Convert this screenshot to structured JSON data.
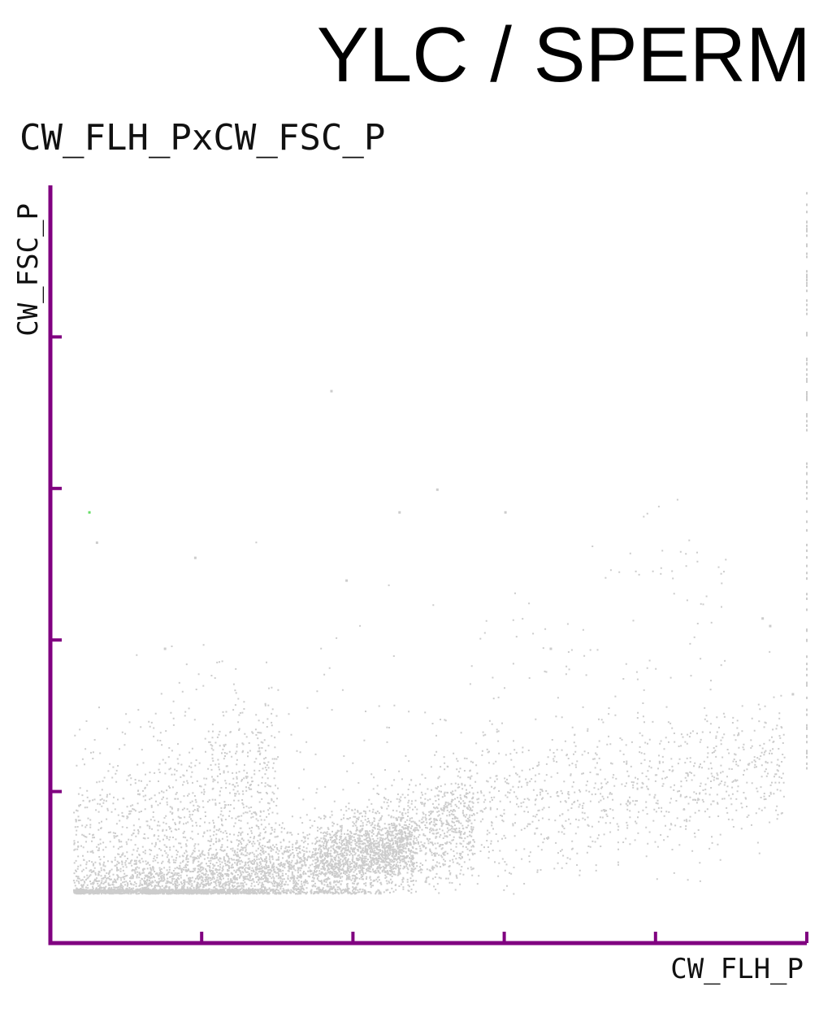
{
  "header": {
    "title": "YLC / SPERM"
  },
  "plot": {
    "title": "CW_FLH_PxCW_FSC_P"
  },
  "chart_data": {
    "type": "scatter",
    "title": "CW_FLH_PxCW_FSC_P",
    "xlabel": "CW_FLH_P",
    "ylabel": "CW_FSC_P",
    "xlim": [
      0,
      1
    ],
    "ylim": [
      0,
      1
    ],
    "x_ticks": [
      0.2,
      0.4,
      0.6,
      0.8,
      1.0
    ],
    "y_ticks": [
      0.2,
      0.4,
      0.6,
      0.8
    ],
    "grid": false,
    "axis_color": "#800080",
    "point_color": "#cccccc",
    "highlight_color": "#66dd66",
    "series": [
      {
        "density_bands": [
          {
            "x_range": [
              0.12,
              0.48
            ],
            "y_center": [
              0.06,
              0.13
            ],
            "y_spread": 0.025,
            "count": 3200,
            "role": "core"
          },
          {
            "x_range": [
              0.35,
              0.56
            ],
            "y_center": [
              0.1,
              0.16
            ],
            "y_spread": 0.035,
            "count": 1200,
            "role": "core"
          },
          {
            "x_range": [
              0.5,
              0.97
            ],
            "y_center": [
              0.16,
              0.24
            ],
            "y_spread": 0.045,
            "count": 1000,
            "role": "tail"
          },
          {
            "x_range": [
              0.03,
              0.3
            ],
            "y_center": [
              0.08,
              0.2
            ],
            "y_spread": 0.08,
            "count": 1400,
            "role": "diffuse"
          },
          {
            "x_range": [
              0.03,
              0.12
            ],
            "y_center": [
              0.05,
              0.08
            ],
            "y_spread": 0.02,
            "count": 500,
            "role": "corner"
          },
          {
            "x_range": [
              0.03,
              0.9
            ],
            "y_center": [
              0.1,
              0.4
            ],
            "y_spread": 0.1,
            "count": 300,
            "role": "sparse"
          }
        ],
        "outliers": [
          {
            "x": 0.37,
            "y": 0.73
          },
          {
            "x": 0.51,
            "y": 0.6
          },
          {
            "x": 0.46,
            "y": 0.57
          },
          {
            "x": 0.6,
            "y": 0.57
          },
          {
            "x": 0.05,
            "y": 0.57
          },
          {
            "x": 0.06,
            "y": 0.53
          },
          {
            "x": 0.19,
            "y": 0.51
          },
          {
            "x": 0.39,
            "y": 0.48
          },
          {
            "x": 0.94,
            "y": 0.43
          },
          {
            "x": 0.95,
            "y": 0.42
          },
          {
            "x": 0.15,
            "y": 0.39
          },
          {
            "x": 0.66,
            "y": 0.39
          },
          {
            "x": 0.98,
            "y": 0.33
          }
        ],
        "right_edge_events": {
          "x": 1.0,
          "y_range": [
            0.23,
            1.0
          ],
          "count": 90
        }
      }
    ]
  }
}
